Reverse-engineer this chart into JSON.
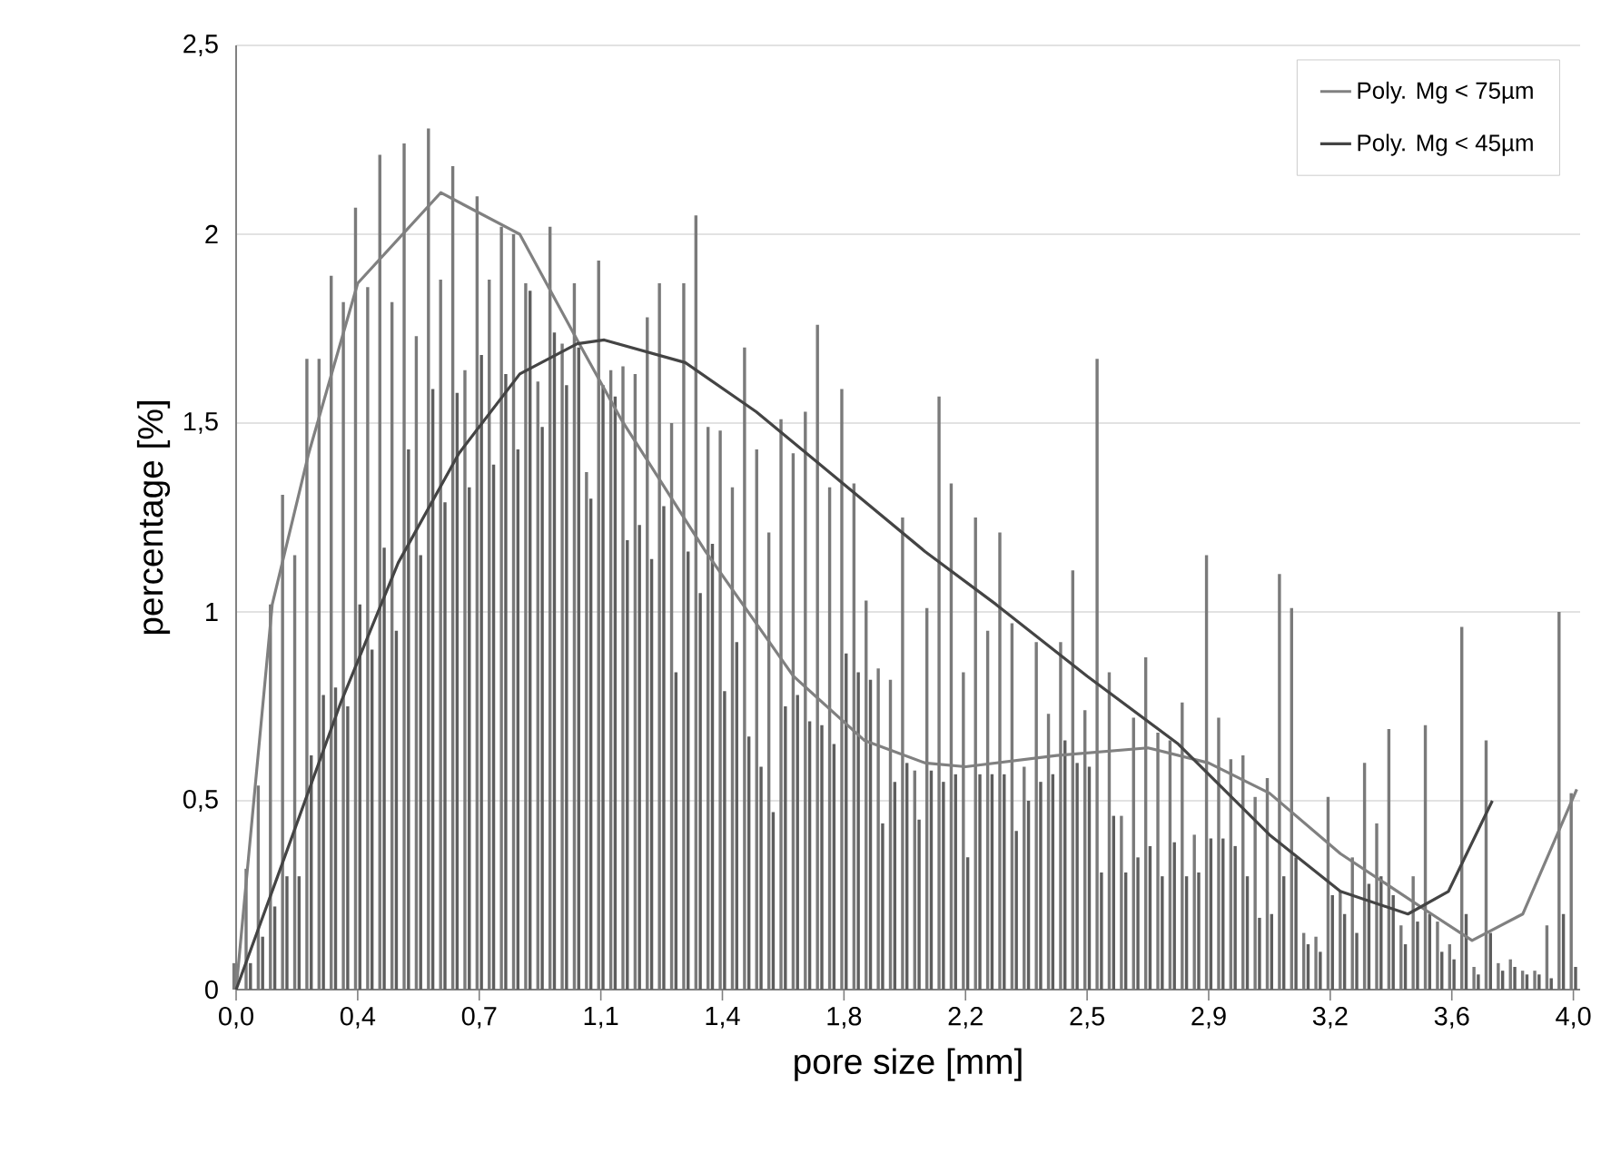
{
  "chart_data": {
    "type": "bar",
    "xlabel": "pore size [mm]",
    "ylabel": "percentage [%]",
    "x": [
      0,
      0.036,
      0.072,
      0.108,
      0.144,
      0.18,
      0.216,
      0.252,
      0.288,
      0.324,
      0.36,
      0.396,
      0.432,
      0.468,
      0.504,
      0.54,
      0.576,
      0.612,
      0.648,
      0.684,
      0.72,
      0.756,
      0.792,
      0.828,
      0.864,
      0.9,
      0.936,
      0.972,
      1.008,
      1.044,
      1.08,
      1.116,
      1.152,
      1.188,
      1.224,
      1.26,
      1.296,
      1.332,
      1.368,
      1.404,
      1.44,
      1.476,
      1.512,
      1.548,
      1.584,
      1.62,
      1.656,
      1.692,
      1.728,
      1.764,
      1.8,
      1.836,
      1.872,
      1.908,
      1.944,
      1.98,
      2.016,
      2.052,
      2.088,
      2.124,
      2.16,
      2.196,
      2.232,
      2.268,
      2.304,
      2.34,
      2.376,
      2.412,
      2.448,
      2.484,
      2.52,
      2.556,
      2.592,
      2.628,
      2.664,
      2.7,
      2.736,
      2.772,
      2.808,
      2.844,
      2.88,
      2.916,
      2.952,
      2.988,
      3.024,
      3.06,
      3.096,
      3.132,
      3.168,
      3.204,
      3.24,
      3.276,
      3.312,
      3.348,
      3.384,
      3.42,
      3.456,
      3.492,
      3.528,
      3.564,
      3.6,
      3.636,
      3.672,
      3.708,
      3.744,
      3.78,
      3.816,
      3.852,
      3.888,
      3.924,
      3.96
    ],
    "series": [
      {
        "color": "#7a7a7a",
        "values": [
          0.07,
          0.32,
          0.54,
          1.02,
          1.31,
          1.15,
          1.67,
          1.67,
          1.89,
          1.82,
          2.07,
          1.86,
          2.21,
          1.82,
          2.24,
          1.73,
          2.28,
          1.88,
          2.18,
          1.64,
          2.1,
          1.88,
          2.02,
          2.0,
          1.87,
          1.61,
          2.02,
          1.71,
          1.87,
          1.37,
          1.93,
          1.64,
          1.65,
          1.63,
          1.78,
          1.87,
          1.5,
          1.87,
          2.05,
          1.49,
          1.48,
          1.33,
          1.7,
          1.43,
          1.21,
          1.51,
          1.42,
          1.53,
          1.76,
          1.33,
          1.59,
          1.34,
          1.03,
          0.85,
          0.82,
          1.25,
          0.58,
          1.01,
          1.57,
          1.34,
          0.84,
          1.25,
          0.95,
          1.21,
          0.97,
          0.59,
          0.92,
          0.73,
          0.92,
          1.11,
          0.74,
          1.67,
          0.84,
          0.46,
          0.72,
          0.88,
          0.68,
          0.66,
          0.76,
          0.41,
          1.15,
          0.72,
          0.61,
          0.62,
          0.51,
          0.56,
          1.1,
          1.01,
          0.15,
          0.14,
          0.51,
          0.26,
          0.35,
          0.6,
          0.44,
          0.69,
          0.17,
          0.3,
          0.7,
          0.18,
          0.12,
          0.96,
          0.06,
          0.66,
          0.07,
          0.08,
          0.05,
          0.05,
          0.17,
          1.0,
          0.52
        ]
      },
      {
        "color": "#5e5e5e",
        "values": [
          null,
          0.07,
          0.14,
          0.22,
          0.3,
          0.3,
          0.62,
          0.78,
          0.8,
          0.75,
          1.02,
          0.9,
          1.17,
          0.95,
          1.43,
          1.15,
          1.59,
          1.29,
          1.58,
          1.33,
          1.68,
          1.39,
          1.63,
          1.43,
          1.85,
          1.49,
          1.74,
          1.6,
          1.7,
          1.3,
          1.6,
          1.57,
          1.19,
          1.23,
          1.14,
          1.28,
          0.84,
          1.16,
          1.05,
          1.18,
          0.79,
          0.92,
          0.67,
          0.59,
          0.47,
          0.75,
          0.78,
          0.71,
          0.7,
          0.65,
          0.89,
          0.84,
          0.82,
          0.44,
          0.55,
          0.6,
          0.45,
          0.58,
          0.55,
          0.57,
          0.35,
          0.57,
          0.57,
          0.57,
          0.42,
          0.5,
          0.55,
          0.57,
          0.66,
          0.6,
          0.59,
          0.31,
          0.46,
          0.31,
          0.35,
          0.38,
          0.3,
          0.39,
          0.3,
          0.31,
          0.4,
          0.4,
          0.38,
          0.3,
          0.19,
          0.2,
          0.3,
          0.35,
          0.12,
          0.1,
          0.25,
          0.2,
          0.15,
          0.28,
          0.3,
          0.25,
          0.12,
          0.18,
          0.2,
          0.1,
          0.08,
          0.2,
          0.04,
          0.15,
          0.05,
          0.06,
          0.04,
          0.04,
          0.03,
          0.2,
          0.06
        ]
      },
      {
        "type": "line",
        "name": "Poly. Mg < 75µm",
        "color": "#808080",
        "x": [
          0,
          0.107,
          0.215,
          0.36,
          0.606,
          0.84,
          1.01,
          1.14,
          1.39,
          1.65,
          1.86,
          2.04,
          2.16,
          2.43,
          2.7,
          2.88,
          3.06,
          3.27,
          3.54,
          3.66,
          3.81,
          3.97
        ],
        "values": [
          0,
          1.02,
          1.42,
          1.87,
          2.11,
          2.0,
          1.72,
          1.51,
          1.16,
          0.83,
          0.66,
          0.6,
          0.59,
          0.62,
          0.64,
          0.6,
          0.52,
          0.36,
          0.2,
          0.13,
          0.2,
          0.53
        ]
      },
      {
        "type": "line",
        "name": "Poly. Mg < 45µm",
        "color": "#444444",
        "x": [
          0,
          0.123,
          0.31,
          0.48,
          0.66,
          0.84,
          1.01,
          1.09,
          1.33,
          1.54,
          1.77,
          2.04,
          2.25,
          2.52,
          2.79,
          3.06,
          3.27,
          3.47,
          3.59,
          3.72
        ],
        "values": [
          0,
          0.3,
          0.76,
          1.13,
          1.42,
          1.63,
          1.71,
          1.72,
          1.66,
          1.53,
          1.36,
          1.16,
          1.02,
          0.83,
          0.65,
          0.41,
          0.26,
          0.2,
          0.26,
          0.5
        ]
      }
    ],
    "xlim": [
      0,
      3.98
    ],
    "ylim": [
      0,
      2.5
    ],
    "xticks": [
      {
        "value": 0,
        "label": "0,0"
      },
      {
        "value": 0.36,
        "label": "0,4"
      },
      {
        "value": 0.72,
        "label": "0,7"
      },
      {
        "value": 1.08,
        "label": "1,1"
      },
      {
        "value": 1.44,
        "label": "1,4"
      },
      {
        "value": 1.8,
        "label": "1,8"
      },
      {
        "value": 2.16,
        "label": "2,2"
      },
      {
        "value": 2.52,
        "label": "2,5"
      },
      {
        "value": 2.88,
        "label": "2,9"
      },
      {
        "value": 3.24,
        "label": "3,2"
      },
      {
        "value": 3.6,
        "label": "3,6"
      },
      {
        "value": 3.96,
        "label": "4,0"
      }
    ],
    "yticks": [
      0,
      {
        "value": 0.5,
        "label": "0,5"
      },
      1,
      {
        "value": 1.5,
        "label": "1,5"
      },
      2,
      {
        "value": 2.5,
        "label": "2,5"
      }
    ],
    "grid": "y",
    "legend": "top right"
  }
}
